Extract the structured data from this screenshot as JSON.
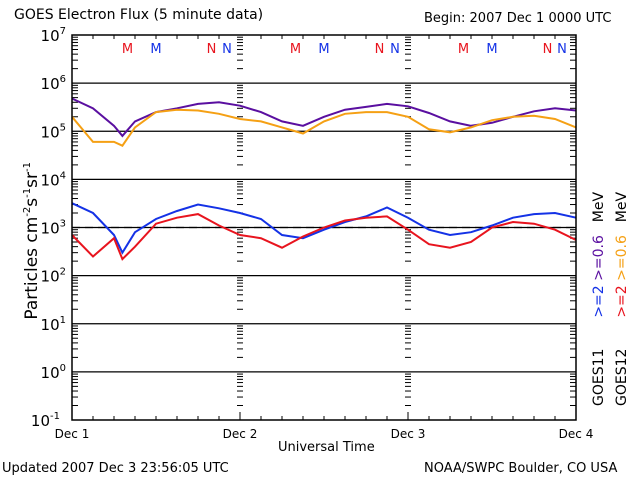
{
  "header": {
    "title": "GOES Electron Flux (5 minute data)",
    "begin": "Begin: 2007 Dec 1 0000 UTC"
  },
  "footer": {
    "updated": "Updated 2007 Dec  3 23:56:05 UTC",
    "credit": "NOAA/SWPC Boulder, CO USA"
  },
  "legend": {
    "goes11": {
      "sat": "GOES11",
      "e2": ">=2",
      "e06": ">=0.6",
      "unit": "MeV"
    },
    "goes12": {
      "sat": "GOES12",
      "e2": ">=2",
      "e06": ">=0.6",
      "unit": "MeV"
    }
  },
  "chart_data": {
    "type": "line",
    "title": "GOES Electron Flux (5 minute data)",
    "xlabel": "Universal Time",
    "ylabel": "Particles cm-2s-1sr-1",
    "yscale": "log",
    "ylim": [
      0.1,
      10000000
    ],
    "xlim": [
      0,
      3
    ],
    "x_ticks": [
      "Dec 1",
      "Dec 2",
      "Dec 3",
      "Dec 4"
    ],
    "y_ticks": [
      {
        "base": "10",
        "exp": "7"
      },
      {
        "base": "10",
        "exp": "6"
      },
      {
        "base": "10",
        "exp": "5"
      },
      {
        "base": "10",
        "exp": "4"
      },
      {
        "base": "10",
        "exp": "3"
      },
      {
        "base": "10",
        "exp": "2"
      },
      {
        "base": "10",
        "exp": "1"
      },
      {
        "base": "10",
        "exp": "0"
      },
      {
        "base": "10",
        "exp": "-1"
      }
    ],
    "threshold": 1000,
    "markers": [
      {
        "label": "M",
        "day": 0.33,
        "color": "#e8141e"
      },
      {
        "label": "M",
        "day": 0.5,
        "color": "#1432e6"
      },
      {
        "label": "N",
        "day": 0.83,
        "color": "#e8141e"
      },
      {
        "label": "N",
        "day": 1.0,
        "color": "#1432e6"
      },
      {
        "label": "M",
        "day": 1.33,
        "color": "#e8141e"
      },
      {
        "label": "M",
        "day": 1.5,
        "color": "#1432e6"
      },
      {
        "label": "N",
        "day": 1.83,
        "color": "#e8141e"
      },
      {
        "label": "N",
        "day": 2.0,
        "color": "#1432e6"
      },
      {
        "label": "M",
        "day": 2.33,
        "color": "#e8141e"
      },
      {
        "label": "M",
        "day": 2.5,
        "color": "#1432e6"
      },
      {
        "label": "N",
        "day": 2.83,
        "color": "#e8141e"
      },
      {
        "label": "N",
        "day": 3.0,
        "color": "#1432e6"
      }
    ],
    "x": [
      0,
      0.125,
      0.25,
      0.3,
      0.375,
      0.5,
      0.625,
      0.75,
      0.875,
      1.0,
      1.125,
      1.25,
      1.375,
      1.5,
      1.625,
      1.75,
      1.875,
      2.0,
      2.125,
      2.25,
      2.375,
      2.5,
      2.625,
      2.75,
      2.875,
      3.0
    ],
    "series": [
      {
        "name": "GOES11 >=0.6 MeV",
        "color": "#5a0fa0",
        "values": [
          480000,
          300000,
          130000,
          80000,
          160000,
          250000,
          300000,
          370000,
          400000,
          340000,
          250000,
          160000,
          130000,
          200000,
          280000,
          320000,
          370000,
          330000,
          240000,
          160000,
          130000,
          150000,
          200000,
          260000,
          300000,
          270000
        ]
      },
      {
        "name": "GOES12 >=0.6 MeV",
        "color": "#f5a014",
        "values": [
          200000,
          60000,
          60000,
          50000,
          120000,
          250000,
          280000,
          270000,
          230000,
          180000,
          160000,
          120000,
          90000,
          160000,
          230000,
          250000,
          250000,
          200000,
          110000,
          95000,
          120000,
          170000,
          200000,
          210000,
          180000,
          120000
        ]
      },
      {
        "name": "GOES11 >=2 MeV",
        "color": "#1432e6",
        "values": [
          3200,
          2000,
          700,
          300,
          800,
          1500,
          2200,
          3000,
          2500,
          2000,
          1500,
          700,
          600,
          900,
          1300,
          1700,
          2600,
          1600,
          900,
          700,
          800,
          1100,
          1600,
          1900,
          2000,
          1600
        ]
      },
      {
        "name": "GOES12 >=2 MeV",
        "color": "#e8141e",
        "values": [
          700,
          250,
          600,
          220,
          400,
          1200,
          1600,
          1900,
          1100,
          700,
          600,
          380,
          650,
          1000,
          1400,
          1600,
          1700,
          900,
          450,
          380,
          500,
          1000,
          1300,
          1200,
          900,
          550
        ]
      }
    ]
  }
}
